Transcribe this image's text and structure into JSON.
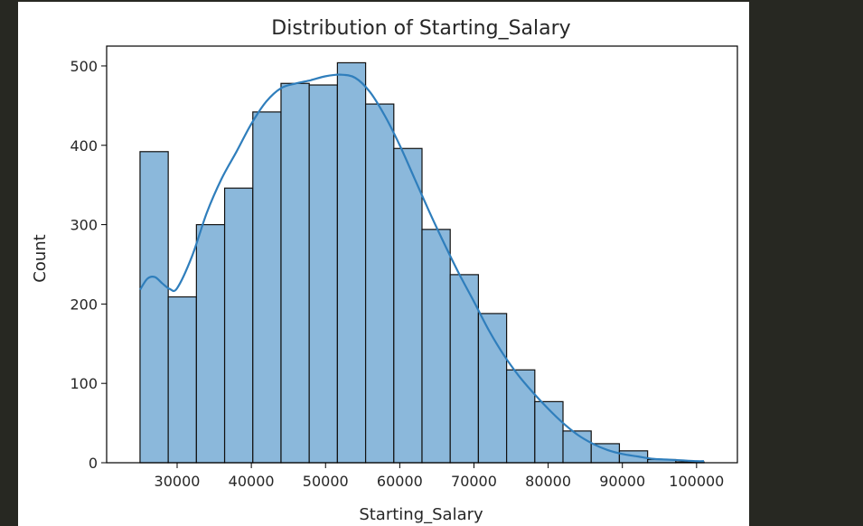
{
  "chart_data": {
    "type": "bar",
    "subtype": "histogram with kde",
    "title": "Distribution of Starting_Salary",
    "xlabel": "Starting_Salary",
    "ylabel": "Count",
    "xlim": [
      20500,
      105500
    ],
    "ylim": [
      0,
      525
    ],
    "xticks": [
      30000,
      40000,
      50000,
      60000,
      70000,
      80000,
      90000,
      100000
    ],
    "xtick_labels": [
      "30000",
      "40000",
      "50000",
      "60000",
      "70000",
      "80000",
      "90000",
      "100000"
    ],
    "yticks": [
      0,
      100,
      200,
      300,
      400,
      500
    ],
    "ytick_labels": [
      "0",
      "100",
      "200",
      "300",
      "400",
      "500"
    ],
    "bin_edges": [
      25000,
      28800,
      32600,
      36400,
      40200,
      44000,
      47800,
      51600,
      55400,
      59200,
      63000,
      66800,
      70600,
      74400,
      78200,
      82000,
      85800,
      89600,
      93400,
      97200,
      101000
    ],
    "values": [
      392,
      209,
      300,
      346,
      442,
      478,
      476,
      504,
      452,
      396,
      294,
      237,
      188,
      117,
      77,
      40,
      24,
      15,
      4,
      1
    ],
    "kde": {
      "x": [
        25000,
        26000,
        27000,
        28000,
        29000,
        30000,
        32000,
        34000,
        36000,
        38000,
        40000,
        42000,
        44000,
        46000,
        48000,
        50000,
        52000,
        54000,
        56000,
        58000,
        60000,
        62000,
        64000,
        66000,
        68000,
        70000,
        72000,
        74000,
        76000,
        78000,
        80000,
        82000,
        84000,
        86000,
        88000,
        90000,
        92000,
        94000,
        96000,
        98000,
        100000,
        101000
      ],
      "y": [
        218,
        232,
        234,
        226,
        219,
        220,
        260,
        315,
        358,
        392,
        427,
        455,
        472,
        478,
        482,
        487,
        489,
        485,
        467,
        437,
        400,
        358,
        316,
        276,
        238,
        203,
        167,
        136,
        110,
        88,
        68,
        50,
        35,
        24,
        16,
        11,
        8,
        5,
        4,
        3,
        2,
        2
      ]
    },
    "grid": false,
    "legend": "none",
    "colors": {
      "bar_fill": "#8bb8db",
      "bar_edge": "#111111",
      "kde_line": "#2f7ebc",
      "axis": "#000000",
      "text": "#262626"
    }
  }
}
